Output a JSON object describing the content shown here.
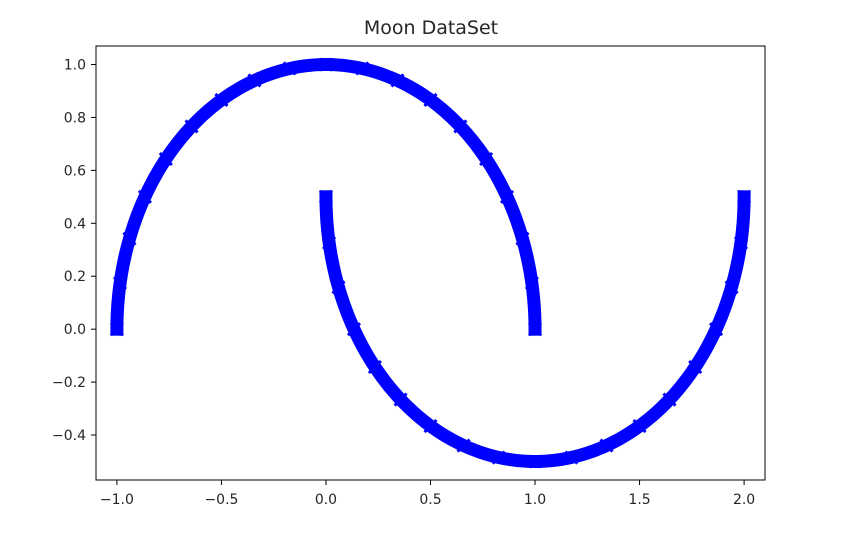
{
  "chart_data": {
    "type": "scatter",
    "title": "Moon DataSet",
    "xlabel": "",
    "ylabel": "",
    "xlim": [
      -1.1,
      2.1
    ],
    "ylim": [
      -0.57,
      1.07
    ],
    "grid": false,
    "marker": "x",
    "series": [
      {
        "color": "#0000ff",
        "description": "upper moon: x = cos(t), y = sin(t), t from 0 to pi",
        "x": [
          1.0,
          0.985,
          0.94,
          0.866,
          0.766,
          0.643,
          0.5,
          0.342,
          0.174,
          0.0,
          -0.174,
          -0.342,
          -0.5,
          -0.643,
          -0.766,
          -0.866,
          -0.94,
          -0.985,
          -1.0
        ],
        "y": [
          0.0,
          0.174,
          0.342,
          0.5,
          0.643,
          0.766,
          0.866,
          0.94,
          0.985,
          1.0,
          0.985,
          0.94,
          0.866,
          0.766,
          0.643,
          0.5,
          0.342,
          0.174,
          0.0
        ]
      },
      {
        "color": "#0000ff",
        "description": "lower moon: x = 1 - cos(t), y = 0.5 - sin(t), t from 0 to pi",
        "x": [
          0.0,
          0.015,
          0.06,
          0.134,
          0.234,
          0.357,
          0.5,
          0.658,
          0.826,
          1.0,
          1.174,
          1.342,
          1.5,
          1.643,
          1.766,
          1.866,
          1.94,
          1.985,
          2.0
        ],
        "y": [
          0.5,
          0.326,
          0.158,
          0.0,
          -0.143,
          -0.266,
          -0.366,
          -0.44,
          -0.485,
          -0.5,
          -0.485,
          -0.44,
          -0.366,
          -0.266,
          -0.143,
          0.0,
          0.158,
          0.326,
          0.5
        ]
      }
    ],
    "x_ticks": [
      {
        "value": -1.0,
        "label": "−1.0"
      },
      {
        "value": -0.5,
        "label": "−0.5"
      },
      {
        "value": 0.0,
        "label": "0.0"
      },
      {
        "value": 0.5,
        "label": "0.5"
      },
      {
        "value": 1.0,
        "label": "1.0"
      },
      {
        "value": 1.5,
        "label": "1.5"
      },
      {
        "value": 2.0,
        "label": "2.0"
      }
    ],
    "y_ticks": [
      {
        "value": -0.4,
        "label": "−0.4"
      },
      {
        "value": -0.2,
        "label": "−0.2"
      },
      {
        "value": 0.0,
        "label": "0.0"
      },
      {
        "value": 0.2,
        "label": "0.2"
      },
      {
        "value": 0.4,
        "label": "0.4"
      },
      {
        "value": 0.6,
        "label": "0.6"
      },
      {
        "value": 0.8,
        "label": "0.8"
      },
      {
        "value": 1.0,
        "label": "1.0"
      }
    ]
  }
}
